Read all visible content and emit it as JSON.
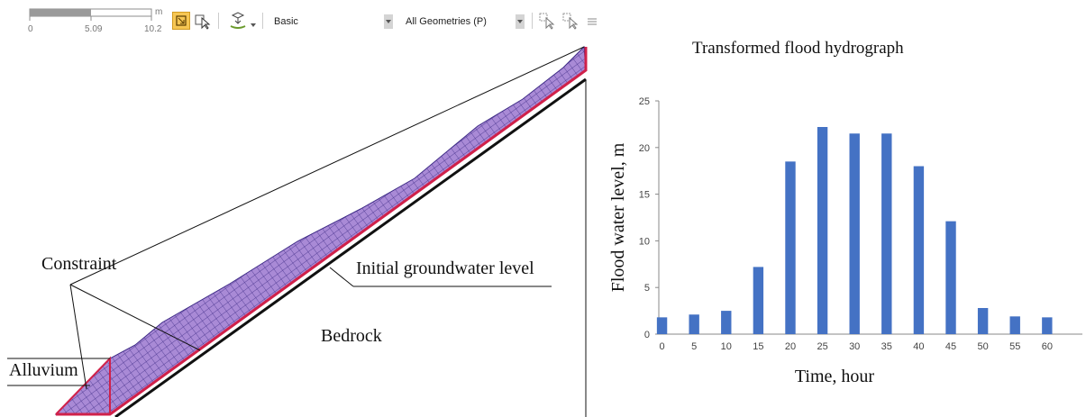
{
  "toolbar": {
    "scale_unit": "m",
    "scale_ticks": [
      "0",
      "5.09",
      "10.2"
    ],
    "mode_label": "Basic",
    "geometry_filter": "All Geometries (P)",
    "icons": [
      "zoom-window-icon",
      "select-pointer-icon",
      "snap-tool-icon",
      "dropdown-arrow-icon",
      "select-filter-icon",
      "select-filter-icon",
      "list-icon"
    ]
  },
  "model": {
    "labels": {
      "constraint": "Constraint",
      "groundwater": "Initial groundwater level",
      "bedrock": "Bedrock",
      "alluvium": "Alluvium"
    },
    "colors": {
      "mesh_fill": "#a98ad6",
      "mesh_line": "#3e2b86",
      "boundary": "#d0214a"
    }
  },
  "chart_data": {
    "type": "bar",
    "title": "Transformed flood hydrograph",
    "xlabel": "Time,  hour",
    "ylabel": "Flood water level, m",
    "categories": [
      "0",
      "5",
      "10",
      "15",
      "20",
      "25",
      "30",
      "35",
      "40",
      "45",
      "50",
      "55",
      "60"
    ],
    "values": [
      1.8,
      2.1,
      2.5,
      7.2,
      18.5,
      22.2,
      21.5,
      21.5,
      18.0,
      12.1,
      2.8,
      1.9,
      1.8
    ],
    "ylim": [
      0,
      25
    ],
    "yticks": [
      "0",
      "5",
      "10",
      "15",
      "20",
      "25"
    ],
    "grid": false,
    "legend": "none",
    "bar_color": "#4472c4"
  }
}
